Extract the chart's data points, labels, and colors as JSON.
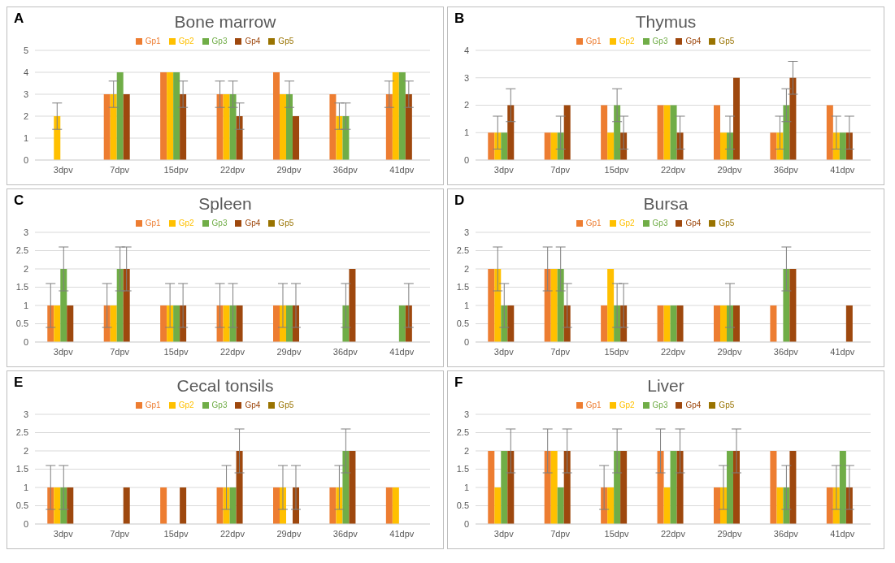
{
  "chart_data": [
    {
      "type": "bar",
      "title": "Bone marrow",
      "annotations": [
        "A"
      ],
      "categories": [
        "3dpv",
        "7dpv",
        "15dpv",
        "22dpv",
        "29dpv",
        "36dpv",
        "41dpv"
      ],
      "ylim": [
        0,
        5
      ],
      "yticks": [
        0,
        1,
        2,
        3,
        4,
        5
      ],
      "grid": "y",
      "legend": "top",
      "series": [
        {
          "name": "Gp1",
          "color": "#ed7d31",
          "values": [
            null,
            3,
            4,
            3,
            4,
            3,
            3
          ],
          "errors": [
            null,
            null,
            null,
            0.6,
            null,
            null,
            0.6
          ]
        },
        {
          "name": "Gp2",
          "color": "#ffc000",
          "values": [
            2,
            3,
            4,
            3,
            3,
            2,
            4
          ],
          "errors": [
            0.6,
            0.6,
            null,
            null,
            null,
            0.6,
            null
          ]
        },
        {
          "name": "Gp3",
          "color": "#70ad47",
          "values": [
            null,
            4,
            4,
            3,
            3,
            2,
            4
          ],
          "errors": [
            null,
            null,
            null,
            0.6,
            0.6,
            0.6,
            null
          ]
        },
        {
          "name": "Gp4",
          "color": "#9e480e",
          "values": [
            null,
            3,
            3,
            2,
            2,
            null,
            3
          ],
          "errors": [
            null,
            null,
            0.6,
            0.6,
            null,
            null,
            0.6
          ]
        },
        {
          "name": "Gp5",
          "color": "#997300",
          "values": [
            null,
            null,
            null,
            null,
            null,
            null,
            null
          ]
        }
      ]
    },
    {
      "type": "bar",
      "title": "Thymus",
      "annotations": [
        "B"
      ],
      "categories": [
        "3dpv",
        "7dpv",
        "15dpv",
        "22dpv",
        "29dpv",
        "36dpv",
        "41dpv"
      ],
      "ylim": [
        0,
        4
      ],
      "yticks": [
        0,
        1,
        2,
        3,
        4
      ],
      "grid": "y",
      "legend": "top",
      "series": [
        {
          "name": "Gp1",
          "color": "#ed7d31",
          "values": [
            1,
            1,
            2,
            2,
            2,
            1,
            2
          ]
        },
        {
          "name": "Gp2",
          "color": "#ffc000",
          "values": [
            1,
            1,
            1,
            2,
            1,
            1,
            1
          ],
          "errors": [
            0.6,
            null,
            null,
            null,
            null,
            0.6,
            0.6
          ]
        },
        {
          "name": "Gp3",
          "color": "#70ad47",
          "values": [
            1,
            1,
            2,
            2,
            1,
            2,
            1
          ],
          "errors": [
            null,
            0.6,
            0.6,
            null,
            0.6,
            0.6,
            null
          ]
        },
        {
          "name": "Gp4",
          "color": "#9e480e",
          "values": [
            2,
            2,
            1,
            1,
            3,
            3,
            1
          ],
          "errors": [
            0.6,
            null,
            0.6,
            0.6,
            null,
            0.6,
            0.6
          ]
        },
        {
          "name": "Gp5",
          "color": "#997300",
          "values": [
            null,
            null,
            null,
            null,
            null,
            null,
            null
          ]
        }
      ]
    },
    {
      "type": "bar",
      "title": "Spleen",
      "annotations": [
        "C"
      ],
      "categories": [
        "3dpv",
        "7dpv",
        "15dpv",
        "22dpv",
        "29dpv",
        "36dpv",
        "41dpv"
      ],
      "ylim": [
        0,
        3
      ],
      "yticks": [
        0,
        0.5,
        1,
        1.5,
        2,
        2.5,
        3
      ],
      "grid": "y",
      "legend": "top",
      "series": [
        {
          "name": "Gp1",
          "color": "#ed7d31",
          "values": [
            1,
            1,
            1,
            1,
            1,
            null,
            null
          ],
          "errors": [
            0.6,
            0.6,
            null,
            0.6,
            null,
            null,
            null
          ]
        },
        {
          "name": "Gp2",
          "color": "#ffc000",
          "values": [
            1,
            1,
            1,
            1,
            1,
            null,
            null
          ],
          "errors": [
            null,
            null,
            0.6,
            null,
            0.6,
            null,
            null
          ]
        },
        {
          "name": "Gp3",
          "color": "#70ad47",
          "values": [
            2,
            2,
            1,
            1,
            1,
            1,
            1
          ],
          "errors": [
            0.6,
            0.6,
            null,
            0.6,
            null,
            0.6,
            null
          ]
        },
        {
          "name": "Gp4",
          "color": "#9e480e",
          "values": [
            1,
            2,
            1,
            1,
            1,
            2,
            1
          ],
          "errors": [
            null,
            0.6,
            0.6,
            null,
            0.6,
            null,
            0.6
          ]
        },
        {
          "name": "Gp5",
          "color": "#997300",
          "values": [
            null,
            null,
            null,
            null,
            null,
            null,
            null
          ]
        }
      ]
    },
    {
      "type": "bar",
      "title": "Bursa",
      "annotations": [
        "D"
      ],
      "categories": [
        "3dpv",
        "7dpv",
        "15dpv",
        "22dpv",
        "29dpv",
        "36dpv",
        "41dpv"
      ],
      "ylim": [
        0,
        3
      ],
      "yticks": [
        0,
        0.5,
        1,
        1.5,
        2,
        2.5,
        3
      ],
      "grid": "y",
      "legend": "top",
      "series": [
        {
          "name": "Gp1",
          "color": "#ed7d31",
          "values": [
            2,
            2,
            1,
            1,
            1,
            1,
            null
          ],
          "errors": [
            null,
            0.6,
            null,
            null,
            null,
            null,
            null
          ]
        },
        {
          "name": "Gp2",
          "color": "#ffc000",
          "values": [
            2,
            2,
            2,
            1,
            1,
            null,
            null
          ],
          "errors": [
            0.6,
            null,
            null,
            null,
            null,
            null,
            null
          ]
        },
        {
          "name": "Gp3",
          "color": "#70ad47",
          "values": [
            1,
            2,
            1,
            1,
            1,
            2,
            null
          ],
          "errors": [
            0.6,
            0.6,
            0.6,
            null,
            0.6,
            0.6,
            null
          ]
        },
        {
          "name": "Gp4",
          "color": "#9e480e",
          "values": [
            1,
            1,
            1,
            1,
            1,
            2,
            1
          ],
          "errors": [
            null,
            0.6,
            0.6,
            null,
            null,
            null,
            null
          ]
        },
        {
          "name": "Gp5",
          "color": "#997300",
          "values": [
            null,
            null,
            null,
            null,
            null,
            null,
            null
          ]
        }
      ]
    },
    {
      "type": "bar",
      "title": "Cecal tonsils",
      "annotations": [
        "E"
      ],
      "categories": [
        "3dpv",
        "7dpv",
        "15dpv",
        "22dpv",
        "29dpv",
        "36dpv",
        "41dpv"
      ],
      "ylim": [
        0,
        3
      ],
      "yticks": [
        0,
        0.5,
        1,
        1.5,
        2,
        2.5,
        3
      ],
      "grid": "y",
      "legend": "top",
      "series": [
        {
          "name": "Gp1",
          "color": "#ed7d31",
          "values": [
            1,
            null,
            1,
            1,
            1,
            1,
            1
          ],
          "errors": [
            0.6,
            null,
            null,
            null,
            null,
            null,
            null
          ]
        },
        {
          "name": "Gp2",
          "color": "#ffc000",
          "values": [
            1,
            null,
            null,
            1,
            1,
            1,
            1
          ],
          "errors": [
            null,
            null,
            null,
            0.6,
            0.6,
            0.6,
            null
          ]
        },
        {
          "name": "Gp3",
          "color": "#70ad47",
          "values": [
            1,
            null,
            null,
            1,
            null,
            2,
            null
          ],
          "errors": [
            0.6,
            null,
            null,
            null,
            null,
            0.6,
            null
          ]
        },
        {
          "name": "Gp4",
          "color": "#9e480e",
          "values": [
            1,
            1,
            1,
            2,
            1,
            2,
            null
          ],
          "errors": [
            null,
            null,
            null,
            0.6,
            0.6,
            null,
            null
          ]
        },
        {
          "name": "Gp5",
          "color": "#997300",
          "values": [
            null,
            null,
            null,
            null,
            null,
            null,
            null
          ]
        }
      ]
    },
    {
      "type": "bar",
      "title": "Liver",
      "annotations": [
        "F"
      ],
      "categories": [
        "3dpv",
        "7dpv",
        "15dpv",
        "22dpv",
        "29dpv",
        "36dpv",
        "41dpv"
      ],
      "ylim": [
        0,
        3
      ],
      "yticks": [
        0,
        0.5,
        1,
        1.5,
        2,
        2.5,
        3
      ],
      "grid": "y",
      "legend": "top",
      "series": [
        {
          "name": "Gp1",
          "color": "#ed7d31",
          "values": [
            2,
            2,
            1,
            2,
            1,
            2,
            1
          ],
          "errors": [
            null,
            0.6,
            0.6,
            0.6,
            null,
            null,
            null
          ]
        },
        {
          "name": "Gp2",
          "color": "#ffc000",
          "values": [
            1,
            2,
            1,
            1,
            1,
            1,
            1
          ],
          "errors": [
            null,
            null,
            null,
            null,
            0.6,
            null,
            0.6
          ]
        },
        {
          "name": "Gp3",
          "color": "#70ad47",
          "values": [
            2,
            1,
            2,
            2,
            2,
            1,
            2
          ],
          "errors": [
            null,
            null,
            0.6,
            null,
            null,
            0.6,
            null
          ]
        },
        {
          "name": "Gp4",
          "color": "#9e480e",
          "values": [
            2,
            2,
            2,
            2,
            2,
            2,
            1
          ],
          "errors": [
            0.6,
            0.6,
            null,
            0.6,
            0.6,
            null,
            0.6
          ]
        },
        {
          "name": "Gp5",
          "color": "#997300",
          "values": [
            null,
            null,
            null,
            null,
            null,
            null,
            null
          ]
        }
      ]
    }
  ]
}
